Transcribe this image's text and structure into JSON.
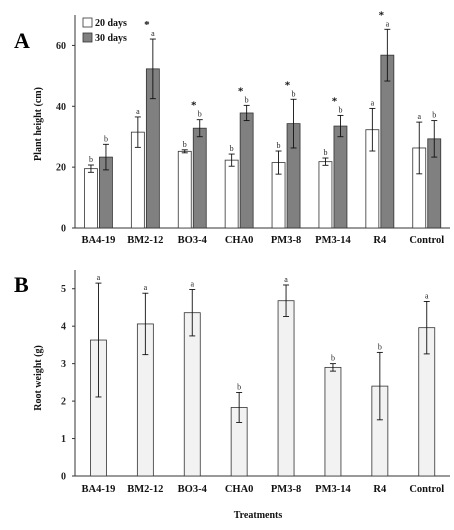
{
  "chart_data": [
    {
      "type": "bar",
      "panel_label": "A",
      "categories": [
        "BA4-19",
        "BM2-12",
        "BO3-4",
        "CHA0",
        "PM3-8",
        "PM3-14",
        "R4",
        "Control"
      ],
      "ylabel": "Plant height (cm)",
      "xlabel": "",
      "ylim": [
        0,
        70
      ],
      "yticks": [
        0,
        20,
        40,
        60
      ],
      "legend_position": "top-left",
      "series": [
        {
          "name": "20 days",
          "color": "#ffffff",
          "values": [
            19.5,
            31.5,
            25.2,
            22.3,
            21.5,
            21.8,
            32.3,
            26.3
          ],
          "errors": [
            1.2,
            5.0,
            0.5,
            2.0,
            3.8,
            1.2,
            7.0,
            8.5
          ],
          "letters": [
            "b",
            "a",
            "b",
            "b",
            "b",
            "b",
            "a",
            "a"
          ]
        },
        {
          "name": "30 days",
          "color": "#808080",
          "values": [
            23.3,
            52.3,
            32.8,
            37.8,
            34.3,
            33.5,
            56.8,
            29.3
          ],
          "errors": [
            4.2,
            9.8,
            2.8,
            2.5,
            8.0,
            3.5,
            8.5,
            6.0
          ],
          "letters": [
            "b",
            "a",
            "b",
            "b",
            "b",
            "b",
            "a",
            "b"
          ],
          "stars": [
            false,
            true,
            true,
            true,
            true,
            true,
            true,
            false
          ]
        }
      ]
    },
    {
      "type": "bar",
      "panel_label": "B",
      "categories": [
        "BA4-19",
        "BM2-12",
        "BO3-4",
        "CHA0",
        "PM3-8",
        "PM3-14",
        "R4",
        "Control"
      ],
      "ylabel": "Root weight (g)",
      "xlabel": "Treatments",
      "ylim": [
        0,
        5.5
      ],
      "yticks": [
        0,
        1,
        2,
        3,
        4,
        5
      ],
      "series": [
        {
          "name": "",
          "color": "#f2f2f2",
          "values": [
            3.63,
            4.06,
            4.36,
            1.83,
            4.68,
            2.9,
            2.4,
            3.96
          ],
          "errors": [
            1.52,
            0.82,
            0.62,
            0.4,
            0.42,
            0.1,
            0.9,
            0.7
          ],
          "letters": [
            "a",
            "a",
            "a",
            "b",
            "a",
            "b",
            "b",
            "a"
          ]
        }
      ]
    }
  ]
}
